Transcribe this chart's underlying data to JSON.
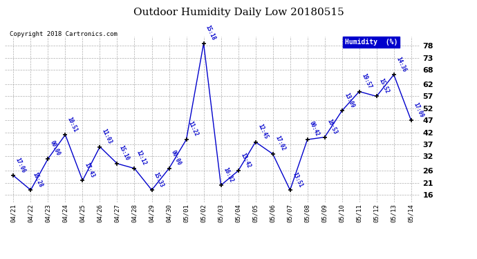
{
  "title": "Outdoor Humidity Daily Low 20180515",
  "copyright": "Copyright 2018 Cartronics.com",
  "legend_label": "Humidity  (%)",
  "yticks": [
    78,
    73,
    68,
    62,
    57,
    52,
    47,
    42,
    37,
    32,
    26,
    21,
    16
  ],
  "ylim": [
    13,
    82
  ],
  "dates": [
    "04/21",
    "04/22",
    "04/23",
    "04/24",
    "04/25",
    "04/26",
    "04/27",
    "04/28",
    "04/29",
    "04/30",
    "05/01",
    "05/02",
    "05/03",
    "05/04",
    "05/05",
    "05/06",
    "05/07",
    "05/08",
    "05/09",
    "05/10",
    "05/11",
    "05/12",
    "05/13",
    "05/14"
  ],
  "values": [
    24,
    18,
    31,
    41,
    22,
    36,
    29,
    27,
    18,
    27,
    39,
    79,
    20,
    26,
    38,
    33,
    18,
    39,
    40,
    51,
    59,
    57,
    66,
    47
  ],
  "labels": [
    "17:06",
    "16:28",
    "00:00",
    "10:51",
    "17:43",
    "11:03",
    "15:10",
    "12:12",
    "15:33",
    "00:00",
    "11:22",
    "15:18",
    "16:32",
    "13:42",
    "12:45",
    "17:02",
    "13:51",
    "00:42",
    "16:53",
    "13:09",
    "19:57",
    "15:52",
    "14:36",
    "17:09"
  ],
  "line_color": "#0000cc",
  "marker_color": "#000000",
  "bg_color": "#ffffff",
  "grid_color": "#999999",
  "label_color": "#0000cc",
  "title_color": "#000000",
  "copyright_color": "#000000",
  "legend_bg": "#0000cc",
  "legend_text_color": "#ffffff"
}
